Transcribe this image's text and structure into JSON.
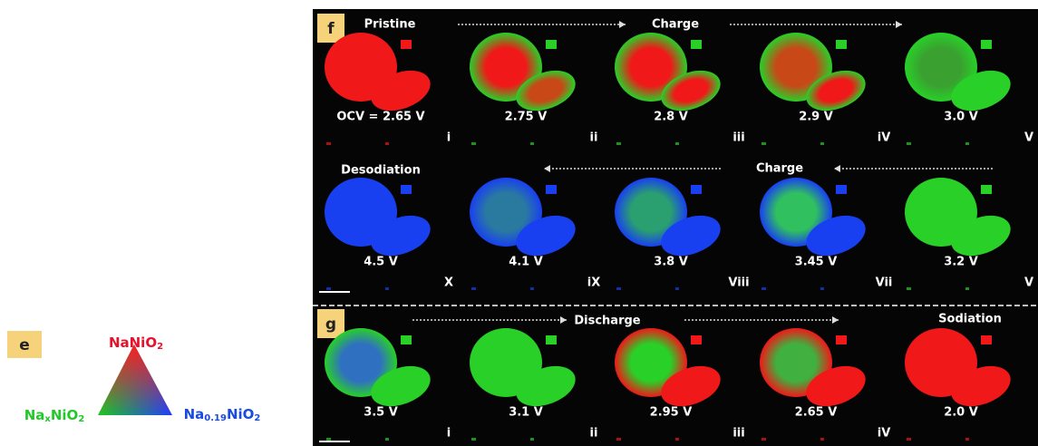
{
  "legend": {
    "label": "e",
    "top": [
      "NaNiO",
      "2"
    ],
    "left": [
      "Na",
      "x",
      "NiO",
      "2"
    ],
    "right": [
      "Na",
      "0.19",
      "NiO",
      "2"
    ]
  },
  "panel_f": {
    "label": "f",
    "rows": [
      {
        "headers": [
          "Pristine",
          "Charge"
        ],
        "cells": [
          {
            "voltage": "OCV = 2.65 V",
            "index": "i"
          },
          {
            "voltage": "2.75 V",
            "index": "ii"
          },
          {
            "voltage": "2.8 V",
            "index": "iii"
          },
          {
            "voltage": "2.9 V",
            "index": "iV"
          },
          {
            "voltage": "3.0 V",
            "index": "V"
          }
        ]
      },
      {
        "headers": [
          "Desodiation",
          "Charge"
        ],
        "cells": [
          {
            "voltage": "4.5 V",
            "index": "X"
          },
          {
            "voltage": "4.1 V",
            "index": "iX"
          },
          {
            "voltage": "3.8 V",
            "index": "Viii"
          },
          {
            "voltage": "3.45 V",
            "index": "Vii"
          },
          {
            "voltage": "3.2 V",
            "index": "V"
          }
        ]
      }
    ]
  },
  "panel_g": {
    "label": "g",
    "headers": [
      "Discharge",
      "Sodiation"
    ],
    "cells": [
      {
        "voltage": "3.5 V",
        "index": "i"
      },
      {
        "voltage": "3.1 V",
        "index": "ii"
      },
      {
        "voltage": "2.95 V",
        "index": "iii"
      },
      {
        "voltage": "2.65 V",
        "index": "iV"
      },
      {
        "voltage": "2.0 V"
      }
    ]
  }
}
